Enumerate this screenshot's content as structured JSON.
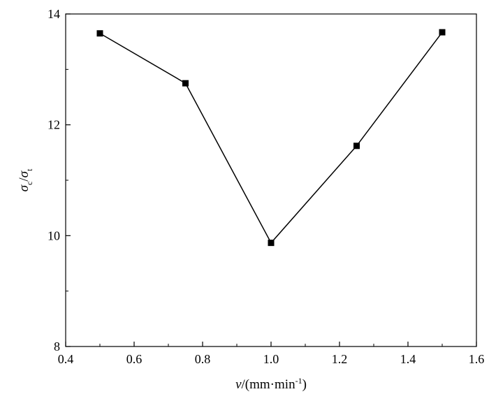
{
  "chart_data": {
    "type": "line",
    "x": [
      0.5,
      0.75,
      1.0,
      1.25,
      1.5
    ],
    "series": [
      {
        "values": [
          13.65,
          12.75,
          9.87,
          11.62,
          13.67
        ],
        "marker": "square",
        "color": "#000000"
      }
    ],
    "xlim": [
      0.4,
      1.6
    ],
    "ylim": [
      8,
      14
    ],
    "xticks": [
      0.4,
      0.6,
      0.8,
      1.0,
      1.2,
      1.4,
      1.6
    ],
    "xtick_labels": [
      "0.4",
      "0.6",
      "0.8",
      "1.0",
      "1.2",
      "1.4",
      "1.6"
    ],
    "yticks": [
      8,
      10,
      12,
      14
    ],
    "ytick_labels": [
      "8",
      "10",
      "12",
      "14"
    ],
    "xlabel": {
      "var": "v",
      "unit_open": "/(mm·min",
      "unit_sup": "-1",
      "unit_close": ")"
    },
    "ylabel": {
      "num": "σ",
      "num_sub": "c",
      "slash": "/",
      "den": "σ",
      "den_sub": "t"
    },
    "grid": false,
    "legend": "none"
  }
}
